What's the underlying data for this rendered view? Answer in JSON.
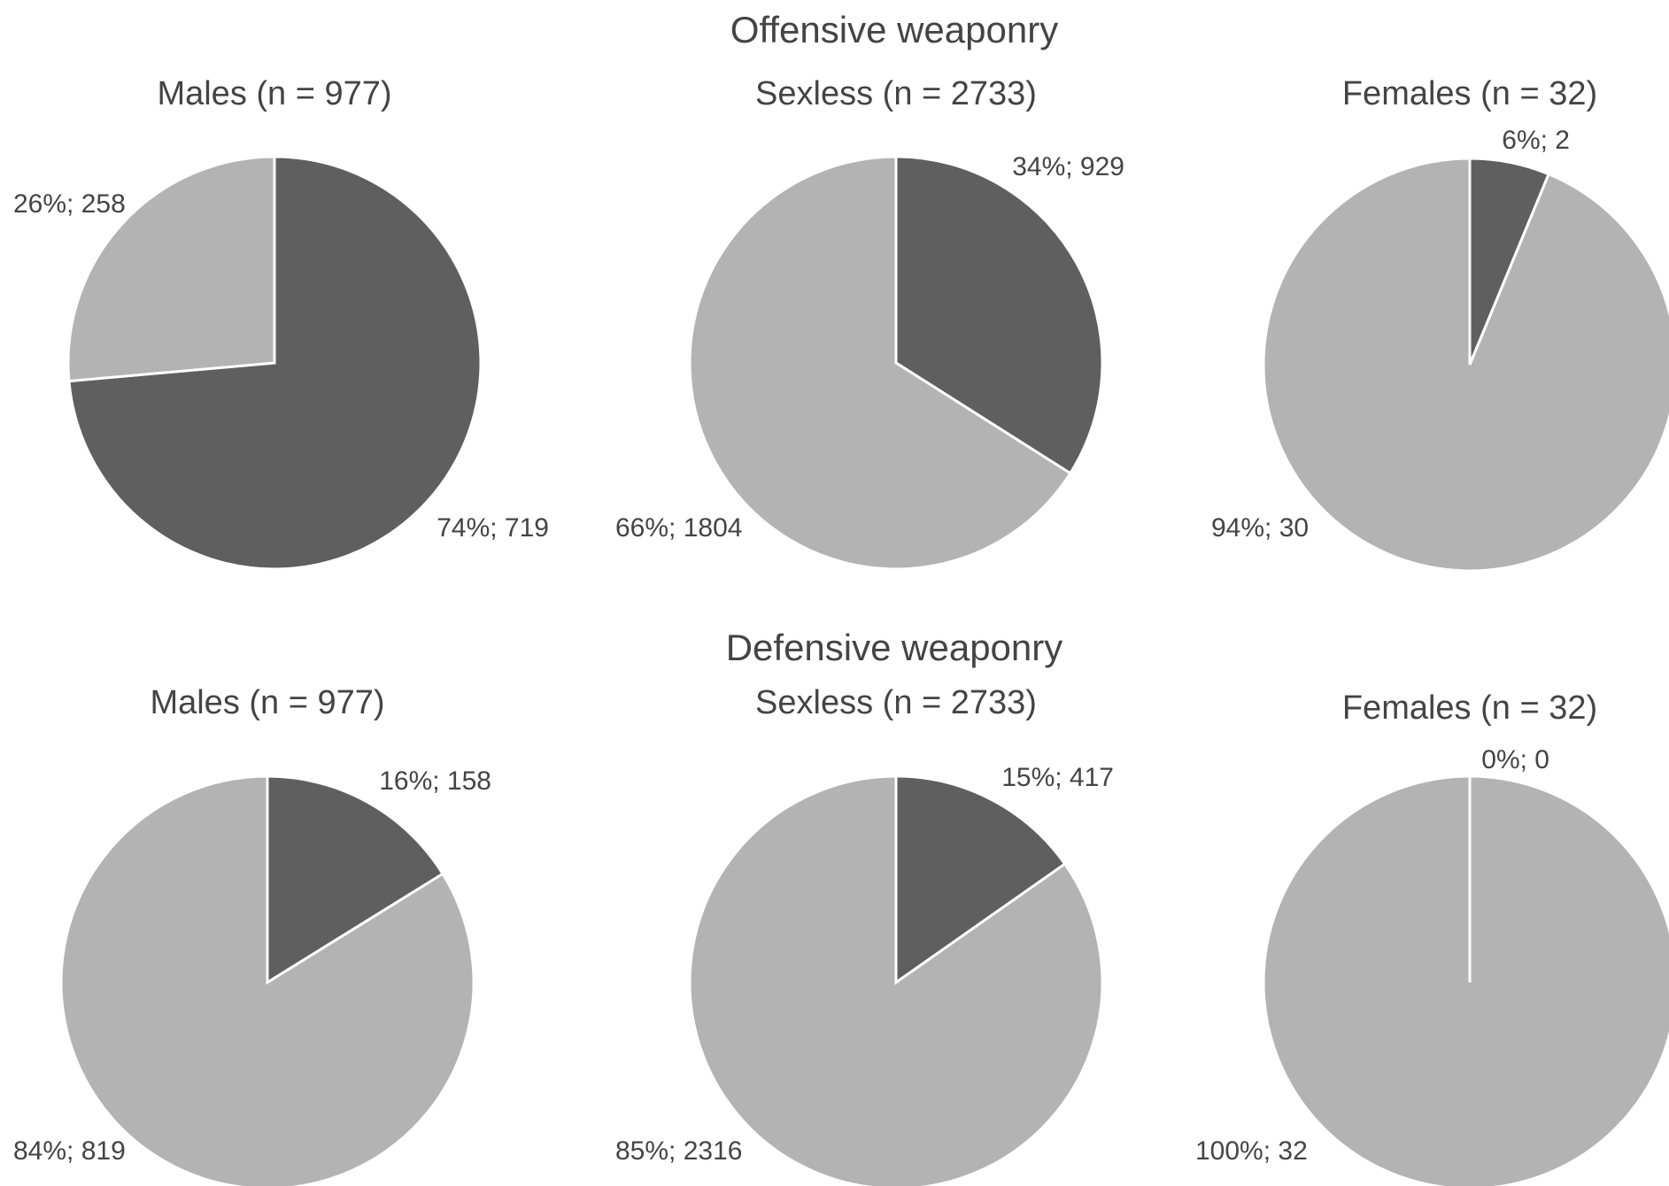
{
  "colors": {
    "dark": "#5f5f5f",
    "light": "#b3b3b3",
    "text": "#444444",
    "stroke": "#ffffff"
  },
  "chart_data": [
    {
      "type": "pie",
      "group": "Offensive weaponry",
      "title": "Males (n = 977)",
      "slices": [
        {
          "color_key": "dark",
          "percent": 74,
          "count": 719,
          "label": "74%; 719"
        },
        {
          "color_key": "light",
          "percent": 26,
          "count": 258,
          "label": "26%; 258"
        }
      ]
    },
    {
      "type": "pie",
      "group": "Offensive weaponry",
      "title": "Sexless (n = 2733)",
      "slices": [
        {
          "color_key": "dark",
          "percent": 34,
          "count": 929,
          "label": "34%; 929"
        },
        {
          "color_key": "light",
          "percent": 66,
          "count": 1804,
          "label": "66%; 1804"
        }
      ]
    },
    {
      "type": "pie",
      "group": "Offensive weaponry",
      "title": "Females (n = 32)",
      "slices": [
        {
          "color_key": "dark",
          "percent": 6,
          "count": 2,
          "label": "6%; 2"
        },
        {
          "color_key": "light",
          "percent": 94,
          "count": 30,
          "label": "94%; 30"
        }
      ]
    },
    {
      "type": "pie",
      "group": "Defensive weaponry",
      "title": "Males (n = 977)",
      "slices": [
        {
          "color_key": "dark",
          "percent": 16,
          "count": 158,
          "label": "16%; 158"
        },
        {
          "color_key": "light",
          "percent": 84,
          "count": 819,
          "label": "84%; 819"
        }
      ]
    },
    {
      "type": "pie",
      "group": "Defensive weaponry",
      "title": "Sexless (n = 2733)",
      "slices": [
        {
          "color_key": "dark",
          "percent": 15,
          "count": 417,
          "label": "15%; 417"
        },
        {
          "color_key": "light",
          "percent": 85,
          "count": 2316,
          "label": "85%; 2316"
        }
      ]
    },
    {
      "type": "pie",
      "group": "Defensive weaponry",
      "title": "Females (n = 32)",
      "slices": [
        {
          "color_key": "dark",
          "percent": 0,
          "count": 0,
          "label": "0%; 0"
        },
        {
          "color_key": "light",
          "percent": 100,
          "count": 32,
          "label": "100%; 32"
        }
      ]
    }
  ]
}
